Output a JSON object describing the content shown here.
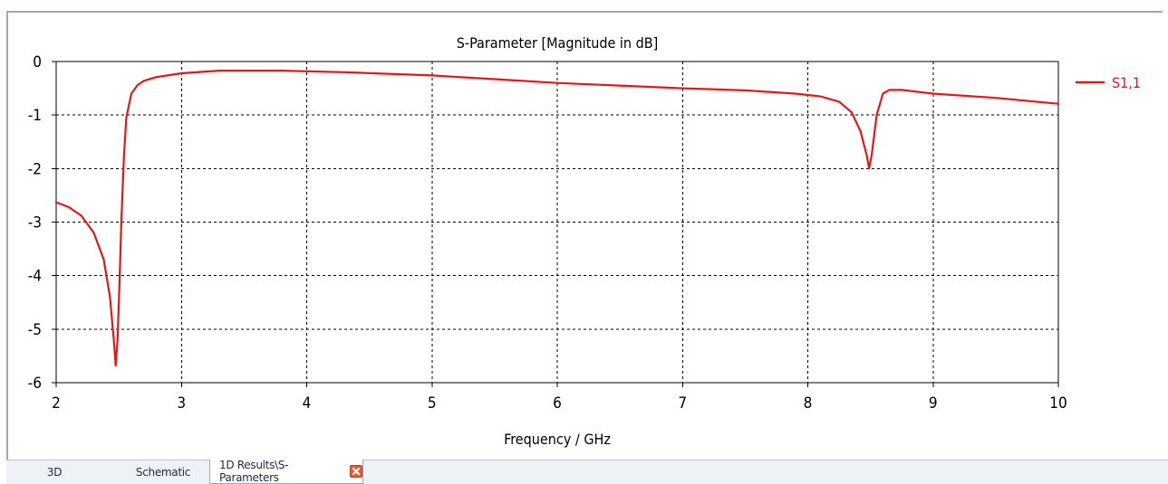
{
  "tabs": [
    {
      "label": "3D",
      "active": false
    },
    {
      "label": "Schematic",
      "active": false
    },
    {
      "label": "1D Results\\S-Parameters",
      "active": true
    }
  ],
  "colors": {
    "series": "#e01818",
    "grid": "#000000",
    "axis": "#000000",
    "background": "#ffffff"
  },
  "chart_data": {
    "type": "line",
    "title": "S-Parameter [Magnitude in dB]",
    "xlabel": "Frequency / GHz",
    "ylabel": "",
    "xlim": [
      2,
      10
    ],
    "ylim": [
      -6,
      0
    ],
    "xticks": [
      2,
      3,
      4,
      5,
      6,
      7,
      8,
      9,
      10
    ],
    "yticks": [
      0,
      -1,
      -2,
      -3,
      -4,
      -5,
      -6
    ],
    "grid": true,
    "legend_position": "right",
    "series": [
      {
        "name": "S1,1",
        "color": "#e01818",
        "points": [
          [
            2.0,
            -2.63
          ],
          [
            2.1,
            -2.72
          ],
          [
            2.2,
            -2.88
          ],
          [
            2.3,
            -3.2
          ],
          [
            2.38,
            -3.7
          ],
          [
            2.43,
            -4.4
          ],
          [
            2.46,
            -5.2
          ],
          [
            2.475,
            -5.68
          ],
          [
            2.49,
            -5.2
          ],
          [
            2.505,
            -4.2
          ],
          [
            2.52,
            -3.0
          ],
          [
            2.54,
            -1.8
          ],
          [
            2.56,
            -1.05
          ],
          [
            2.6,
            -0.6
          ],
          [
            2.65,
            -0.44
          ],
          [
            2.7,
            -0.36
          ],
          [
            2.8,
            -0.29
          ],
          [
            3.0,
            -0.22
          ],
          [
            3.3,
            -0.17
          ],
          [
            3.8,
            -0.17
          ],
          [
            4.3,
            -0.2
          ],
          [
            5.0,
            -0.26
          ],
          [
            5.5,
            -0.33
          ],
          [
            6.0,
            -0.4
          ],
          [
            6.5,
            -0.45
          ],
          [
            7.0,
            -0.5
          ],
          [
            7.5,
            -0.54
          ],
          [
            7.9,
            -0.6
          ],
          [
            8.1,
            -0.65
          ],
          [
            8.25,
            -0.75
          ],
          [
            8.35,
            -0.95
          ],
          [
            8.42,
            -1.3
          ],
          [
            8.47,
            -1.75
          ],
          [
            8.49,
            -2.0
          ],
          [
            8.51,
            -1.75
          ],
          [
            8.55,
            -1.0
          ],
          [
            8.6,
            -0.6
          ],
          [
            8.65,
            -0.53
          ],
          [
            8.75,
            -0.53
          ],
          [
            9.0,
            -0.6
          ],
          [
            9.5,
            -0.68
          ],
          [
            10.0,
            -0.79
          ]
        ]
      }
    ]
  }
}
